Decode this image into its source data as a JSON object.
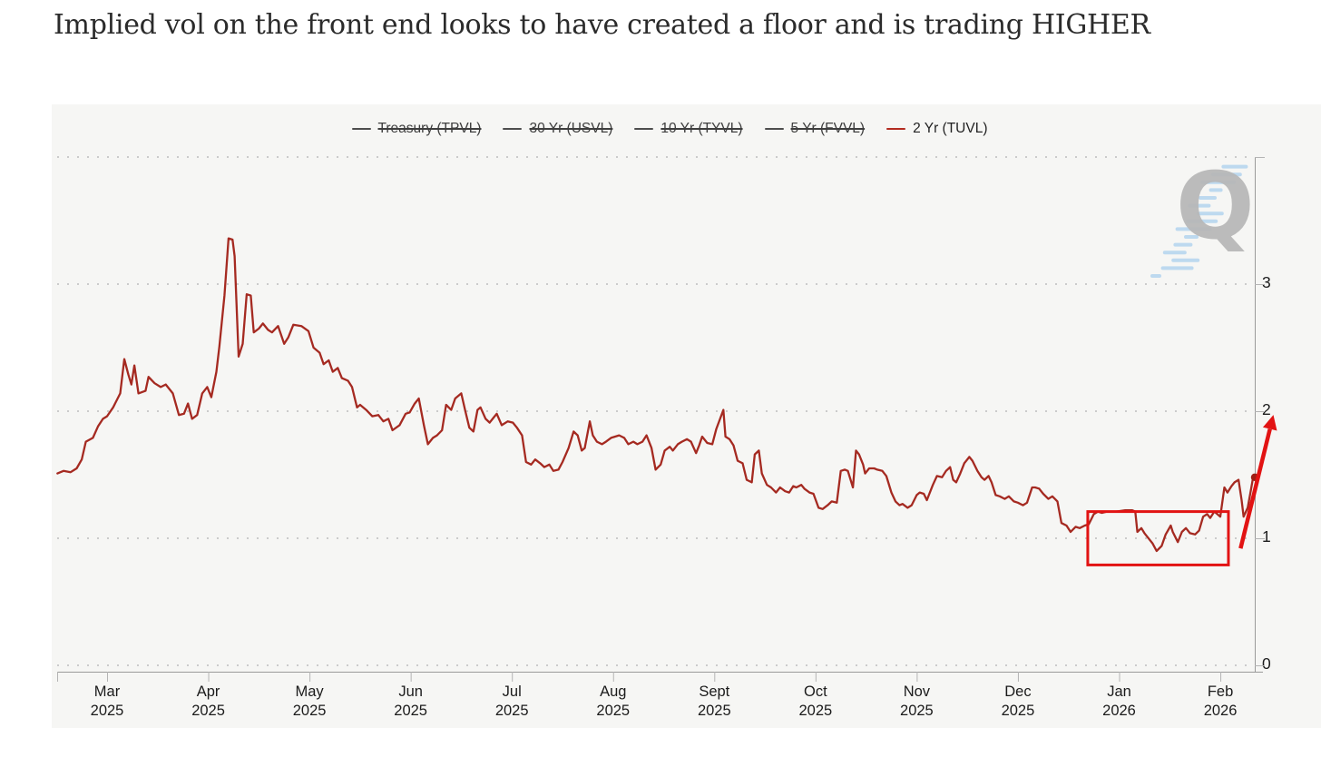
{
  "page": {
    "title": "Implied vol on the front end looks to have created a floor and is trading HIGHER"
  },
  "legend": {
    "items": [
      {
        "label": "Treasury (TPVL)",
        "active": false,
        "swatch_color": "#4d4d4d"
      },
      {
        "label": "30 Yr (USVL)",
        "active": false,
        "swatch_color": "#4d4d4d"
      },
      {
        "label": "10 Yr (TYVL)",
        "active": false,
        "swatch_color": "#4d4d4d"
      },
      {
        "label": "5 Yr (FVVL)",
        "active": false,
        "swatch_color": "#4d4d4d"
      },
      {
        "label": "2 Yr (TUVL)",
        "active": true,
        "swatch_color": "#b32b20"
      }
    ]
  },
  "watermark": {
    "letter": "Q"
  },
  "colors": {
    "series": "#a52a21",
    "annotation": "#e21313",
    "marker": "#9e1f16",
    "panel_bg": "#f6f6f4",
    "grid": "#cbcbcb",
    "axis": "#9a9a9a",
    "tick": "#b4b4b4",
    "watermark_blue": "#a9cfed"
  },
  "chart_data": {
    "type": "line",
    "title": "",
    "x_axis": {
      "unit": "months since 2025-03-01 (0 = Mar 2025 tick, 11 = Feb 2026 tick)",
      "tick_labels": [
        {
          "month": "Mar",
          "year": "2025"
        },
        {
          "month": "Apr",
          "year": "2025"
        },
        {
          "month": "May",
          "year": "2025"
        },
        {
          "month": "Jun",
          "year": "2025"
        },
        {
          "month": "Jul",
          "year": "2025"
        },
        {
          "month": "Aug",
          "year": "2025"
        },
        {
          "month": "Sept",
          "year": "2025"
        },
        {
          "month": "Oct",
          "year": "2025"
        },
        {
          "month": "Nov",
          "year": "2025"
        },
        {
          "month": "Dec",
          "year": "2025"
        },
        {
          "month": "Jan",
          "year": "2026"
        },
        {
          "month": "Feb",
          "year": "2026"
        }
      ]
    },
    "y_axis": {
      "tick_labels": [
        "0",
        "1",
        "2",
        "3"
      ],
      "range": [
        0,
        4
      ],
      "side": "right",
      "grid": "dotted"
    },
    "series": [
      {
        "name": "Treasury (TPVL)",
        "visible": false
      },
      {
        "name": "30 Yr (USVL)",
        "visible": false
      },
      {
        "name": "10 Yr (TYVL)",
        "visible": false
      },
      {
        "name": "5 Yr (FVVL)",
        "visible": false
      },
      {
        "name": "2 Yr (TUVL)",
        "visible": true,
        "color": "#a52a21",
        "x_unit": "months since 2025-03-01",
        "points": [
          [
            -0.49,
            1.51
          ],
          [
            -0.43,
            1.53
          ],
          [
            -0.36,
            1.52
          ],
          [
            -0.3,
            1.55
          ],
          [
            -0.25,
            1.62
          ],
          [
            -0.21,
            1.76
          ],
          [
            -0.14,
            1.79
          ],
          [
            -0.09,
            1.88
          ],
          [
            -0.04,
            1.94
          ],
          [
            0,
            1.96
          ],
          [
            0.06,
            2.03
          ],
          [
            0.13,
            2.14
          ],
          [
            0.17,
            2.41
          ],
          [
            0.21,
            2.29
          ],
          [
            0.24,
            2.21
          ],
          [
            0.27,
            2.36
          ],
          [
            0.31,
            2.14
          ],
          [
            0.38,
            2.16
          ],
          [
            0.41,
            2.27
          ],
          [
            0.47,
            2.22
          ],
          [
            0.53,
            2.19
          ],
          [
            0.58,
            2.21
          ],
          [
            0.65,
            2.14
          ],
          [
            0.71,
            1.97
          ],
          [
            0.76,
            1.98
          ],
          [
            0.8,
            2.06
          ],
          [
            0.84,
            1.94
          ],
          [
            0.89,
            1.97
          ],
          [
            0.94,
            2.14
          ],
          [
            0.99,
            2.19
          ],
          [
            1.03,
            2.11
          ],
          [
            1.08,
            2.31
          ],
          [
            1.11,
            2.51
          ],
          [
            1.16,
            2.91
          ],
          [
            1.2,
            3.36
          ],
          [
            1.24,
            3.35
          ],
          [
            1.26,
            3.22
          ],
          [
            1.3,
            2.43
          ],
          [
            1.34,
            2.53
          ],
          [
            1.38,
            2.92
          ],
          [
            1.42,
            2.91
          ],
          [
            1.45,
            2.62
          ],
          [
            1.5,
            2.65
          ],
          [
            1.54,
            2.69
          ],
          [
            1.59,
            2.64
          ],
          [
            1.63,
            2.62
          ],
          [
            1.69,
            2.67
          ],
          [
            1.75,
            2.53
          ],
          [
            1.79,
            2.58
          ],
          [
            1.84,
            2.68
          ],
          [
            1.92,
            2.67
          ],
          [
            1.99,
            2.63
          ],
          [
            2.04,
            2.5
          ],
          [
            2.1,
            2.46
          ],
          [
            2.14,
            2.37
          ],
          [
            2.19,
            2.4
          ],
          [
            2.23,
            2.31
          ],
          [
            2.28,
            2.34
          ],
          [
            2.32,
            2.26
          ],
          [
            2.38,
            2.24
          ],
          [
            2.42,
            2.19
          ],
          [
            2.47,
            2.03
          ],
          [
            2.5,
            2.05
          ],
          [
            2.56,
            2.01
          ],
          [
            2.62,
            1.96
          ],
          [
            2.68,
            1.97
          ],
          [
            2.73,
            1.92
          ],
          [
            2.78,
            1.94
          ],
          [
            2.82,
            1.85
          ],
          [
            2.89,
            1.89
          ],
          [
            2.95,
            1.98
          ],
          [
            2.99,
            1.99
          ],
          [
            3.04,
            2.06
          ],
          [
            3.08,
            2.1
          ],
          [
            3.13,
            1.89
          ],
          [
            3.17,
            1.74
          ],
          [
            3.22,
            1.79
          ],
          [
            3.26,
            1.81
          ],
          [
            3.31,
            1.85
          ],
          [
            3.35,
            2.05
          ],
          [
            3.4,
            2.01
          ],
          [
            3.44,
            2.1
          ],
          [
            3.5,
            2.14
          ],
          [
            3.54,
            2.0
          ],
          [
            3.58,
            1.87
          ],
          [
            3.62,
            1.84
          ],
          [
            3.66,
            2.01
          ],
          [
            3.69,
            2.03
          ],
          [
            3.74,
            1.94
          ],
          [
            3.78,
            1.91
          ],
          [
            3.82,
            1.95
          ],
          [
            3.85,
            1.98
          ],
          [
            3.9,
            1.89
          ],
          [
            3.96,
            1.92
          ],
          [
            4.01,
            1.91
          ],
          [
            4.05,
            1.87
          ],
          [
            4.1,
            1.81
          ],
          [
            4.14,
            1.6
          ],
          [
            4.19,
            1.58
          ],
          [
            4.23,
            1.62
          ],
          [
            4.28,
            1.59
          ],
          [
            4.32,
            1.56
          ],
          [
            4.37,
            1.58
          ],
          [
            4.41,
            1.53
          ],
          [
            4.46,
            1.54
          ],
          [
            4.5,
            1.6
          ],
          [
            4.56,
            1.71
          ],
          [
            4.61,
            1.84
          ],
          [
            4.65,
            1.81
          ],
          [
            4.69,
            1.69
          ],
          [
            4.72,
            1.71
          ],
          [
            4.77,
            1.92
          ],
          [
            4.8,
            1.81
          ],
          [
            4.84,
            1.76
          ],
          [
            4.89,
            1.74
          ],
          [
            4.93,
            1.76
          ],
          [
            4.98,
            1.79
          ],
          [
            5.02,
            1.8
          ],
          [
            5.06,
            1.81
          ],
          [
            5.11,
            1.79
          ],
          [
            5.15,
            1.74
          ],
          [
            5.2,
            1.76
          ],
          [
            5.24,
            1.74
          ],
          [
            5.29,
            1.76
          ],
          [
            5.33,
            1.81
          ],
          [
            5.38,
            1.71
          ],
          [
            5.42,
            1.54
          ],
          [
            5.47,
            1.58
          ],
          [
            5.51,
            1.69
          ],
          [
            5.56,
            1.72
          ],
          [
            5.59,
            1.69
          ],
          [
            5.64,
            1.74
          ],
          [
            5.68,
            1.76
          ],
          [
            5.73,
            1.78
          ],
          [
            5.77,
            1.76
          ],
          [
            5.82,
            1.67
          ],
          [
            5.85,
            1.73
          ],
          [
            5.88,
            1.8
          ],
          [
            5.93,
            1.75
          ],
          [
            5.98,
            1.74
          ],
          [
            6.02,
            1.86
          ],
          [
            6.09,
            2.01
          ],
          [
            6.11,
            1.8
          ],
          [
            6.15,
            1.78
          ],
          [
            6.19,
            1.73
          ],
          [
            6.23,
            1.61
          ],
          [
            6.28,
            1.59
          ],
          [
            6.32,
            1.46
          ],
          [
            6.37,
            1.44
          ],
          [
            6.4,
            1.66
          ],
          [
            6.44,
            1.69
          ],
          [
            6.47,
            1.51
          ],
          [
            6.52,
            1.42
          ],
          [
            6.56,
            1.4
          ],
          [
            6.61,
            1.36
          ],
          [
            6.65,
            1.4
          ],
          [
            6.7,
            1.37
          ],
          [
            6.74,
            1.36
          ],
          [
            6.78,
            1.41
          ],
          [
            6.81,
            1.4
          ],
          [
            6.86,
            1.42
          ],
          [
            6.89,
            1.39
          ],
          [
            6.94,
            1.36
          ],
          [
            6.98,
            1.35
          ],
          [
            7.03,
            1.24
          ],
          [
            7.07,
            1.23
          ],
          [
            7.12,
            1.26
          ],
          [
            7.16,
            1.29
          ],
          [
            7.21,
            1.28
          ],
          [
            7.25,
            1.53
          ],
          [
            7.29,
            1.54
          ],
          [
            7.32,
            1.53
          ],
          [
            7.37,
            1.4
          ],
          [
            7.4,
            1.69
          ],
          [
            7.43,
            1.66
          ],
          [
            7.47,
            1.58
          ],
          [
            7.49,
            1.51
          ],
          [
            7.53,
            1.55
          ],
          [
            7.58,
            1.55
          ],
          [
            7.61,
            1.54
          ],
          [
            7.66,
            1.53
          ],
          [
            7.7,
            1.49
          ],
          [
            7.75,
            1.36
          ],
          [
            7.79,
            1.29
          ],
          [
            7.83,
            1.26
          ],
          [
            7.86,
            1.27
          ],
          [
            7.91,
            1.24
          ],
          [
            7.95,
            1.26
          ],
          [
            8.0,
            1.34
          ],
          [
            8.03,
            1.36
          ],
          [
            8.07,
            1.35
          ],
          [
            8.1,
            1.3
          ],
          [
            8.16,
            1.42
          ],
          [
            8.2,
            1.49
          ],
          [
            8.25,
            1.48
          ],
          [
            8.29,
            1.53
          ],
          [
            8.33,
            1.56
          ],
          [
            8.36,
            1.46
          ],
          [
            8.39,
            1.44
          ],
          [
            8.43,
            1.51
          ],
          [
            8.47,
            1.59
          ],
          [
            8.52,
            1.64
          ],
          [
            8.55,
            1.61
          ],
          [
            8.6,
            1.53
          ],
          [
            8.64,
            1.48
          ],
          [
            8.67,
            1.46
          ],
          [
            8.71,
            1.49
          ],
          [
            8.74,
            1.44
          ],
          [
            8.78,
            1.34
          ],
          [
            8.82,
            1.33
          ],
          [
            8.87,
            1.31
          ],
          [
            8.91,
            1.33
          ],
          [
            8.96,
            1.29
          ],
          [
            9.0,
            1.28
          ],
          [
            9.05,
            1.26
          ],
          [
            9.09,
            1.28
          ],
          [
            9.14,
            1.4
          ],
          [
            9.17,
            1.4
          ],
          [
            9.21,
            1.39
          ],
          [
            9.25,
            1.35
          ],
          [
            9.3,
            1.31
          ],
          [
            9.34,
            1.33
          ],
          [
            9.39,
            1.29
          ],
          [
            9.43,
            1.12
          ],
          [
            9.48,
            1.1
          ],
          [
            9.52,
            1.05
          ],
          [
            9.57,
            1.09
          ],
          [
            9.61,
            1.08
          ],
          [
            9.66,
            1.1
          ],
          [
            9.7,
            1.11
          ],
          [
            9.75,
            1.19
          ],
          [
            9.79,
            1.21
          ],
          [
            9.83,
            1.2
          ],
          [
            9.88,
            1.21
          ],
          [
            9.97,
            1.21
          ],
          [
            10.06,
            1.22
          ],
          [
            10.13,
            1.22
          ],
          [
            10.16,
            1.21
          ],
          [
            10.18,
            1.05
          ],
          [
            10.22,
            1.08
          ],
          [
            10.25,
            1.04
          ],
          [
            10.28,
            1.01
          ],
          [
            10.33,
            0.96
          ],
          [
            10.37,
            0.9
          ],
          [
            10.42,
            0.94
          ],
          [
            10.46,
            1.03
          ],
          [
            10.51,
            1.1
          ],
          [
            10.53,
            1.05
          ],
          [
            10.58,
            0.97
          ],
          [
            10.62,
            1.05
          ],
          [
            10.66,
            1.08
          ],
          [
            10.7,
            1.04
          ],
          [
            10.75,
            1.03
          ],
          [
            10.79,
            1.06
          ],
          [
            10.83,
            1.17
          ],
          [
            10.87,
            1.19
          ],
          [
            10.9,
            1.16
          ],
          [
            10.94,
            1.21
          ],
          [
            10.97,
            1.19
          ],
          [
            11.0,
            1.17
          ],
          [
            11.04,
            1.4
          ],
          [
            11.07,
            1.36
          ],
          [
            11.11,
            1.41
          ],
          [
            11.14,
            1.44
          ],
          [
            11.18,
            1.46
          ],
          [
            11.21,
            1.3
          ],
          [
            11.23,
            1.17
          ],
          [
            11.27,
            1.24
          ],
          [
            11.3,
            1.37
          ],
          [
            11.32,
            1.46
          ],
          [
            11.34,
            1.48
          ]
        ]
      }
    ],
    "annotations": {
      "floor_box": {
        "x": [
          9.69,
          11.08
        ],
        "y": [
          0.79,
          1.21
        ],
        "color": "#e21313"
      },
      "up_arrow": {
        "from": [
          11.2,
          0.92
        ],
        "to": [
          11.49,
          1.86
        ],
        "color": "#e21313"
      },
      "last_point_marker": {
        "x": 11.34,
        "y": 1.48,
        "color": "#9e1f16"
      }
    }
  }
}
